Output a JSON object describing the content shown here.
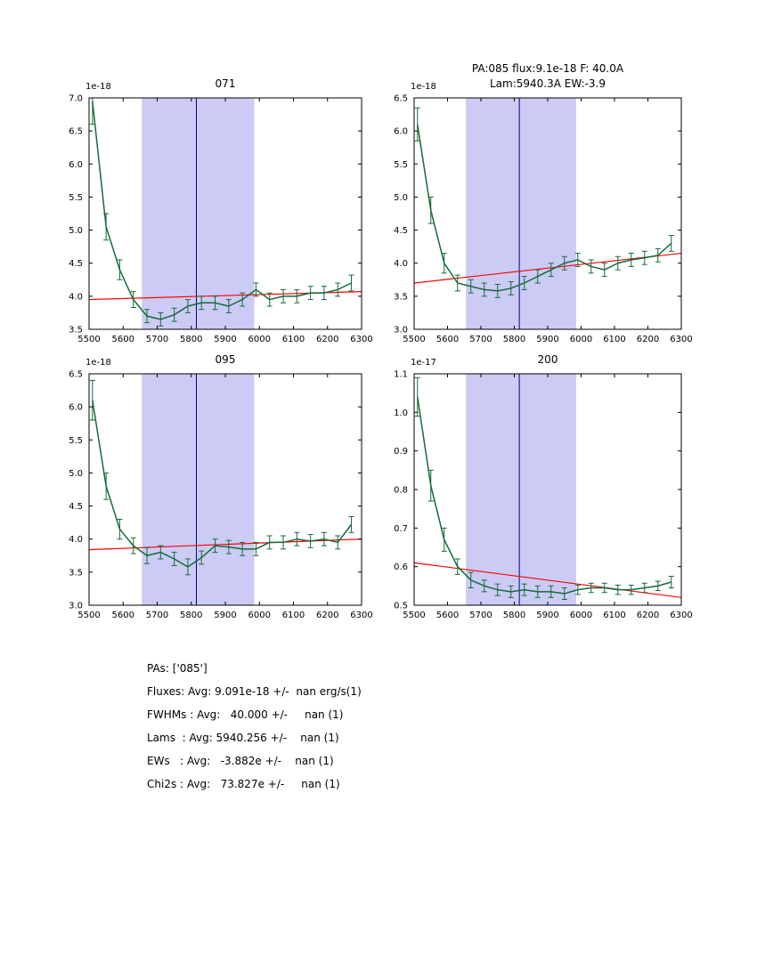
{
  "colors": {
    "spectrum": "#166b3a",
    "fit": "#ff0000",
    "band": "#b9b9f2",
    "band_opacity": 0.75,
    "vline": "#000080",
    "axis": "#000000",
    "background": "#ffffff"
  },
  "chart_data": [
    {
      "type": "line",
      "title_lines": [
        "071"
      ],
      "offset_label": "1e-18",
      "xlim": [
        5500,
        6300
      ],
      "ylim": [
        3.5,
        7.0
      ],
      "xticks": [
        5500,
        5600,
        5700,
        5800,
        5900,
        6000,
        6100,
        6200,
        6300
      ],
      "yticks": [
        3.5,
        4.0,
        4.5,
        5.0,
        5.5,
        6.0,
        6.5,
        7.0
      ],
      "band": [
        5655,
        5985
      ],
      "vline": 5815,
      "x": [
        5510,
        5550,
        5590,
        5630,
        5670,
        5710,
        5750,
        5790,
        5830,
        5870,
        5910,
        5950,
        5990,
        6030,
        6070,
        6110,
        6150,
        6190,
        6230,
        6270
      ],
      "series": [
        {
          "name": "spectrum",
          "values": [
            6.95,
            5.05,
            4.4,
            3.95,
            3.7,
            3.65,
            3.72,
            3.85,
            3.9,
            3.9,
            3.85,
            3.95,
            4.1,
            3.95,
            4.0,
            4.0,
            4.05,
            4.05,
            4.1,
            4.2
          ],
          "errors": [
            0.35,
            0.2,
            0.15,
            0.12,
            0.1,
            0.1,
            0.1,
            0.1,
            0.1,
            0.1,
            0.1,
            0.1,
            0.1,
            0.1,
            0.1,
            0.1,
            0.1,
            0.1,
            0.1,
            0.12
          ]
        }
      ],
      "fit": {
        "x": [
          5500,
          6300
        ],
        "y": [
          3.95,
          4.07
        ]
      }
    },
    {
      "type": "line",
      "title_lines": [
        "PA:085 flux:9.1e-18 F: 40.0A",
        "Lam:5940.3A EW:-3.9"
      ],
      "offset_label": "1e-18",
      "xlim": [
        5500,
        6300
      ],
      "ylim": [
        3.0,
        6.5
      ],
      "xticks": [
        5500,
        5600,
        5700,
        5800,
        5900,
        6000,
        6100,
        6200,
        6300
      ],
      "yticks": [
        3.0,
        3.5,
        4.0,
        4.5,
        5.0,
        5.5,
        6.0,
        6.5
      ],
      "band": [
        5655,
        5985
      ],
      "vline": 5815,
      "x": [
        5510,
        5550,
        5590,
        5630,
        5670,
        5710,
        5750,
        5790,
        5830,
        5870,
        5910,
        5950,
        5990,
        6030,
        6070,
        6110,
        6150,
        6190,
        6230,
        6270
      ],
      "series": [
        {
          "name": "spectrum",
          "values": [
            6.1,
            4.8,
            4.0,
            3.7,
            3.65,
            3.6,
            3.58,
            3.62,
            3.7,
            3.8,
            3.9,
            4.0,
            4.05,
            3.95,
            3.9,
            4.0,
            4.05,
            4.08,
            4.12,
            4.3
          ],
          "errors": [
            0.25,
            0.2,
            0.15,
            0.12,
            0.1,
            0.1,
            0.1,
            0.1,
            0.1,
            0.1,
            0.1,
            0.1,
            0.1,
            0.1,
            0.1,
            0.1,
            0.1,
            0.1,
            0.1,
            0.12
          ]
        }
      ],
      "fit": {
        "x": [
          5500,
          6300
        ],
        "y": [
          3.7,
          4.15
        ]
      }
    },
    {
      "type": "line",
      "title_lines": [
        "095"
      ],
      "offset_label": "1e-18",
      "xlim": [
        5500,
        6300
      ],
      "ylim": [
        3.0,
        6.5
      ],
      "xticks": [
        5500,
        5600,
        5700,
        5800,
        5900,
        6000,
        6100,
        6200,
        6300
      ],
      "yticks": [
        3.0,
        3.5,
        4.0,
        4.5,
        5.0,
        5.5,
        6.0,
        6.5
      ],
      "band": [
        5655,
        5985
      ],
      "vline": 5815,
      "x": [
        5510,
        5550,
        5590,
        5630,
        5670,
        5710,
        5750,
        5790,
        5830,
        5870,
        5910,
        5950,
        5990,
        6030,
        6070,
        6110,
        6150,
        6190,
        6230,
        6270
      ],
      "series": [
        {
          "name": "spectrum",
          "values": [
            6.1,
            4.8,
            4.15,
            3.9,
            3.75,
            3.8,
            3.7,
            3.58,
            3.72,
            3.9,
            3.88,
            3.85,
            3.85,
            3.95,
            3.95,
            4.0,
            3.97,
            4.0,
            3.95,
            4.22
          ],
          "errors": [
            0.3,
            0.2,
            0.15,
            0.12,
            0.12,
            0.1,
            0.1,
            0.12,
            0.1,
            0.1,
            0.1,
            0.1,
            0.1,
            0.1,
            0.1,
            0.1,
            0.1,
            0.1,
            0.1,
            0.12
          ]
        }
      ],
      "fit": {
        "x": [
          5500,
          6300
        ],
        "y": [
          3.84,
          4.0
        ]
      }
    },
    {
      "type": "line",
      "title_lines": [
        "200"
      ],
      "offset_label": "1e-17",
      "xlim": [
        5500,
        6300
      ],
      "ylim": [
        0.5,
        1.1
      ],
      "xticks": [
        5500,
        5600,
        5700,
        5800,
        5900,
        6000,
        6100,
        6200,
        6300
      ],
      "yticks": [
        0.5,
        0.6,
        0.7,
        0.8,
        0.9,
        1.0,
        1.1
      ],
      "band": [
        5655,
        5985
      ],
      "vline": 5815,
      "x": [
        5510,
        5550,
        5590,
        5630,
        5670,
        5710,
        5750,
        5790,
        5830,
        5870,
        5910,
        5950,
        5990,
        6030,
        6070,
        6110,
        6150,
        6190,
        6230,
        6270
      ],
      "series": [
        {
          "name": "spectrum",
          "values": [
            1.04,
            0.81,
            0.67,
            0.6,
            0.565,
            0.55,
            0.54,
            0.535,
            0.54,
            0.535,
            0.535,
            0.53,
            0.54,
            0.545,
            0.545,
            0.54,
            0.54,
            0.545,
            0.55,
            0.56
          ],
          "errors": [
            0.05,
            0.04,
            0.03,
            0.02,
            0.02,
            0.015,
            0.015,
            0.015,
            0.015,
            0.015,
            0.015,
            0.015,
            0.012,
            0.012,
            0.012,
            0.012,
            0.012,
            0.012,
            0.012,
            0.015
          ]
        }
      ],
      "fit": {
        "x": [
          5500,
          6300
        ],
        "y": [
          0.61,
          0.52
        ]
      }
    }
  ],
  "stats": {
    "lines": [
      "PAs: ['085']",
      "Fluxes: Avg: 9.091e-18 +/-  nan erg/s(1)",
      "FWHMs : Avg:   40.000 +/-     nan (1)",
      "Lams  : Avg: 5940.256 +/-    nan (1)",
      "EWs   : Avg:   -3.882e +/-    nan (1)",
      "Chi2s : Avg:   73.827e +/-     nan (1)"
    ]
  }
}
